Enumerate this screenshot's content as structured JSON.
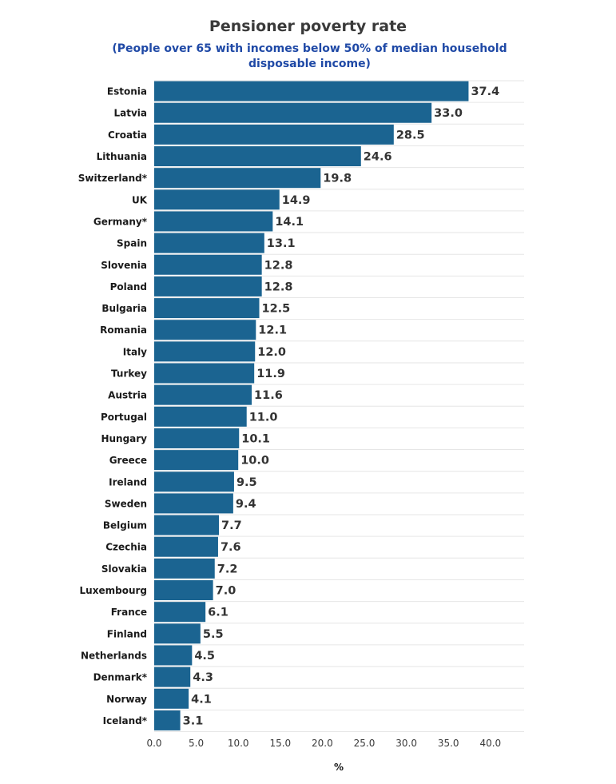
{
  "chart_data": {
    "type": "bar",
    "orientation": "horizontal",
    "title": "Pensioner poverty rate",
    "subtitle": "(People over 65 with incomes below 50% of median household disposable income)",
    "xlabel": "%",
    "ylabel": "",
    "xlim": [
      0,
      44
    ],
    "xticks": [
      "0.0",
      "5.0",
      "10.0",
      "15.0",
      "20.0",
      "25.0",
      "30.0",
      "35.0",
      "40.0"
    ],
    "xtick_values": [
      0,
      5,
      10,
      15,
      20,
      25,
      30,
      35,
      40
    ],
    "grid": true,
    "bar_color": "#1b6491",
    "categories": [
      "Estonia",
      "Latvia",
      "Croatia",
      "Lithuania",
      "Switzerland*",
      "UK",
      "Germany*",
      "Spain",
      "Slovenia",
      "Poland",
      "Bulgaria",
      "Romania",
      "Italy",
      "Turkey",
      "Austria",
      "Portugal",
      "Hungary",
      "Greece",
      "Ireland",
      "Sweden",
      "Belgium",
      "Czechia",
      "Slovakia",
      "Luxembourg",
      "France",
      "Finland",
      "Netherlands",
      "Denmark*",
      "Norway",
      "Iceland*"
    ],
    "values": [
      37.4,
      33.0,
      28.5,
      24.6,
      19.8,
      14.9,
      14.1,
      13.1,
      12.8,
      12.8,
      12.5,
      12.1,
      12.0,
      11.9,
      11.6,
      11.0,
      10.1,
      10.0,
      9.5,
      9.4,
      7.7,
      7.6,
      7.2,
      7.0,
      6.1,
      5.5,
      4.5,
      4.3,
      4.1,
      3.1
    ],
    "value_labels": [
      "37.4",
      "33.0",
      "28.5",
      "24.6",
      "19.8",
      "14.9",
      "14.1",
      "13.1",
      "12.8",
      "12.8",
      "12.5",
      "12.1",
      "12.0",
      "11.9",
      "11.6",
      "11.0",
      "10.1",
      "10.0",
      "9.5",
      "9.4",
      "7.7",
      "7.6",
      "7.2",
      "7.0",
      "6.1",
      "5.5",
      "4.5",
      "4.3",
      "4.1",
      "3.1"
    ]
  }
}
